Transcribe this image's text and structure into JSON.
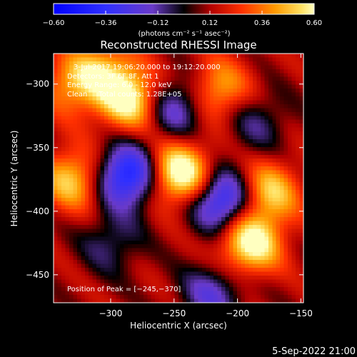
{
  "chart_data": {
    "type": "heatmap",
    "title": "Reconstructed RHESSI Image",
    "xlabel": "Heliocentric X (arcsec)",
    "ylabel": "Heliocentric Y (arcsec)",
    "xlim": [
      -345,
      -148
    ],
    "ylim": [
      -472,
      -276
    ],
    "xticks": [
      -300,
      -250,
      -200,
      -150
    ],
    "yticks": [
      -300,
      -350,
      -400,
      -450
    ],
    "xtick_labels": [
      "−300",
      "−250",
      "−200",
      "−150"
    ],
    "ytick_labels": [
      "−300",
      "−350",
      "−400",
      "−450"
    ],
    "colorbar": {
      "range": [
        -0.6,
        0.6
      ],
      "ticks": [
        -0.6,
        -0.36,
        -0.12,
        0.12,
        0.36,
        0.6
      ],
      "tick_labels": [
        "−0.60",
        "−0.36",
        "−0.12",
        "0.12",
        "0.36",
        "0.60"
      ],
      "units_label": "(photons cm⁻² s⁻¹ asec⁻²)"
    },
    "annotations": [
      "3-Jul-2017 19:06:20.000 to 19:12:20.000",
      "Detectors: 3F 6F 8F, Att 1",
      "Energy Range: 6.0 - 12.0 keV",
      "Clean     Total counts: 1.28E+05"
    ],
    "peak_text": "Position of Peak = [−245,−370]",
    "peak_position": [
      -245,
      -370
    ],
    "sources": [
      {
        "x": -245,
        "y": -370,
        "value": 0.6
      },
      {
        "x": -285,
        "y": -312,
        "value": 0.5
      },
      {
        "x": -190,
        "y": -425,
        "value": 0.55
      },
      {
        "x": -330,
        "y": -375,
        "value": 0.4
      },
      {
        "x": -175,
        "y": -385,
        "value": 0.4
      },
      {
        "x": -215,
        "y": -305,
        "value": 0.35
      },
      {
        "x": -305,
        "y": -290,
        "value": 0.3
      },
      {
        "x": -330,
        "y": -300,
        "value": 0.3
      },
      {
        "x": -287,
        "y": -372,
        "value": -0.6
      },
      {
        "x": -212,
        "y": -392,
        "value": -0.55
      },
      {
        "x": -248,
        "y": -318,
        "value": -0.35
      },
      {
        "x": -300,
        "y": -425,
        "value": -0.2
      },
      {
        "x": -185,
        "y": -330,
        "value": -0.2
      },
      {
        "x": -220,
        "y": -465,
        "value": -0.3
      }
    ],
    "grid": false
  },
  "footer_date": "5-Sep-2022 21:00"
}
